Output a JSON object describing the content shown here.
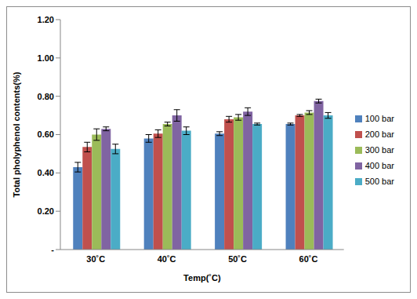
{
  "chart_data": {
    "type": "bar",
    "x_label": "Temp(˚C)",
    "y_label": "Total pholyphenol contents(%)",
    "categories": [
      "30˚C",
      "40˚C",
      "50˚C",
      "60˚C"
    ],
    "series": [
      {
        "name": "100 bar",
        "color": "#4F81BD",
        "values": [
          0.43,
          0.58,
          0.605,
          0.655
        ],
        "errors": [
          0.025,
          0.02,
          0.01,
          0.005
        ]
      },
      {
        "name": "200 bar",
        "color": "#C0504D",
        "values": [
          0.535,
          0.605,
          0.68,
          0.7
        ],
        "errors": [
          0.025,
          0.02,
          0.015,
          0.005
        ]
      },
      {
        "name": "300 bar",
        "color": "#9BBB59",
        "values": [
          0.6,
          0.655,
          0.69,
          0.715
        ],
        "errors": [
          0.03,
          0.01,
          0.015,
          0.01
        ]
      },
      {
        "name": "400 bar",
        "color": "#8064A2",
        "values": [
          0.63,
          0.7,
          0.72,
          0.775
        ],
        "errors": [
          0.01,
          0.03,
          0.02,
          0.01
        ]
      },
      {
        "name": "500 bar",
        "color": "#4BACC6",
        "values": [
          0.525,
          0.62,
          0.655,
          0.7
        ],
        "errors": [
          0.025,
          0.02,
          0.005,
          0.015
        ]
      }
    ],
    "ylim": [
      0,
      1.2
    ],
    "yticks": [
      {
        "value": 0,
        "label": "-"
      },
      {
        "value": 0.2,
        "label": "0.20"
      },
      {
        "value": 0.4,
        "label": "0.40"
      },
      {
        "value": 0.6,
        "label": "0.60"
      },
      {
        "value": 0.8,
        "label": "0.80"
      },
      {
        "value": 1.0,
        "label": "1.00"
      },
      {
        "value": 1.2,
        "label": "1.20"
      }
    ],
    "grid": false,
    "legend": "right"
  }
}
